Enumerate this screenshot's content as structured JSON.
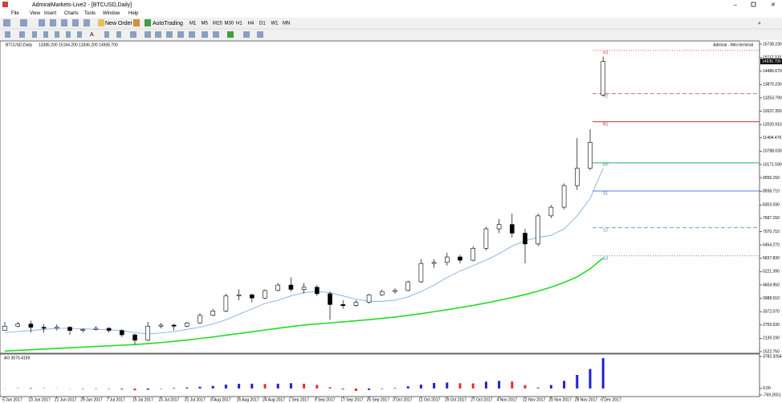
{
  "window_title": "AdmiralMarkets-Live2 - [BTCUSD,Daily]",
  "menu": [
    "File",
    "View",
    "Insert",
    "Charts",
    "Tools",
    "Window",
    "Help"
  ],
  "toolbar": {
    "new_order": "New Order",
    "auto_trading": "AutoTrading",
    "timeframes": [
      "M1",
      "M5",
      "M15",
      "M30",
      "H1",
      "H4",
      "D1",
      "W1",
      "MN"
    ]
  },
  "chart_data": [
    {
      "type": "candlestick",
      "title": "BTCUSD,Daily",
      "ohlc_text": "13385.200 15164.200 13336.200 14936.700",
      "note": "Admiral - Mini terminal",
      "categories": [
        "5 Jun 2017",
        null,
        "13 Jun 2017",
        null,
        "21 Jun 2017",
        null,
        "29 Jun 2017",
        null,
        "7 Jul 2017",
        null,
        "15 Jul 2017",
        null,
        "23 Jul 2017",
        null,
        "31 Jul 2017",
        null,
        "8 Aug 2017",
        null,
        "16 Aug 2017",
        null,
        "24 Aug 2017",
        null,
        "1 Sep 2017",
        null,
        "9 Sep 2017",
        null,
        "17 Sep 2017",
        null,
        "25 Sep 2017",
        null,
        "3 Oct 2017",
        null,
        "11 Oct 2017",
        null,
        "19 Oct 2017",
        null,
        "27 Oct 2017",
        null,
        "4 Nov 2017",
        null,
        "12 Nov 2017",
        null,
        "20 Nov 2017",
        null,
        "28 Nov 2017",
        null,
        "6 Dec 2017"
      ],
      "candles": [
        [
          2500,
          2900,
          2480,
          2700
        ],
        [
          2700,
          2900,
          2650,
          2800
        ],
        [
          2800,
          2950,
          2400,
          2650
        ],
        [
          2650,
          2800,
          2400,
          2600
        ],
        [
          2600,
          2780,
          2500,
          2650
        ],
        [
          2650,
          2700,
          2300,
          2500
        ],
        [
          2500,
          2600,
          2400,
          2550
        ],
        [
          2550,
          2700,
          2500,
          2600
        ],
        [
          2600,
          2650,
          2400,
          2500
        ],
        [
          2500,
          2550,
          2200,
          2300
        ],
        [
          2300,
          2350,
          1850,
          2050
        ],
        [
          2050,
          2900,
          2000,
          2700
        ],
        [
          2700,
          2850,
          2600,
          2750
        ],
        [
          2750,
          2800,
          2500,
          2700
        ],
        [
          2700,
          2900,
          2650,
          2850
        ],
        [
          2850,
          3300,
          2800,
          3200
        ],
        [
          3200,
          3500,
          3150,
          3400
        ],
        [
          3400,
          4200,
          3350,
          4100
        ],
        [
          4100,
          4400,
          3900,
          4150
        ],
        [
          4150,
          4200,
          3800,
          4000
        ],
        [
          4000,
          4400,
          3950,
          4350
        ],
        [
          4350,
          4700,
          4300,
          4600
        ],
        [
          4600,
          4950,
          4300,
          4400
        ],
        [
          4400,
          4700,
          4200,
          4500
        ],
        [
          4500,
          4600,
          4100,
          4200
        ],
        [
          4200,
          4300,
          3000,
          3700
        ],
        [
          3700,
          3900,
          3500,
          3650
        ],
        [
          3650,
          3900,
          3600,
          3800
        ],
        [
          3800,
          4200,
          3750,
          4150
        ],
        [
          4150,
          4400,
          4100,
          4300
        ],
        [
          4300,
          4450,
          4200,
          4350
        ],
        [
          4350,
          4800,
          4300,
          4750
        ],
        [
          4750,
          5800,
          4700,
          5600
        ],
        [
          5600,
          5800,
          5400,
          5650
        ],
        [
          5650,
          6100,
          5500,
          5900
        ],
        [
          5900,
          6000,
          5600,
          5750
        ],
        [
          5750,
          6400,
          5700,
          6300
        ],
        [
          6300,
          7300,
          6200,
          7200
        ],
        [
          7200,
          7650,
          7000,
          7400
        ],
        [
          7400,
          7900,
          6800,
          7000
        ],
        [
          7000,
          7200,
          5600,
          6500
        ],
        [
          6500,
          7900,
          6400,
          7800
        ],
        [
          7800,
          8300,
          7700,
          8200
        ],
        [
          8200,
          9300,
          8100,
          9200
        ],
        [
          9200,
          11400,
          9000,
          10000
        ],
        [
          10000,
          11800,
          9900,
          11200
        ],
        [
          13385.2,
          15164.2,
          13336.2,
          14936.7
        ]
      ],
      "up_color": "#ffffff",
      "down_color": "#000000",
      "lines": [
        {
          "color": "#7aa6e0",
          "values": [
            2400,
            2450,
            2500,
            2550,
            2600,
            2600,
            2580,
            2550,
            2540,
            2500,
            2400,
            2350,
            2380,
            2450,
            2550,
            2650,
            2800,
            3000,
            3250,
            3500,
            3750,
            3900,
            4100,
            4250,
            4300,
            4250,
            4100,
            3950,
            3850,
            3850,
            3900,
            4050,
            4300,
            4600,
            4950,
            5250,
            5500,
            5750,
            6050,
            6400,
            6650,
            6800,
            6900,
            7200,
            7800,
            8600,
            10000
          ]
        },
        {
          "color": "#22dd22",
          "values": [
            1550,
            1580,
            1610,
            1640,
            1670,
            1700,
            1730,
            1760,
            1790,
            1820,
            1850,
            1890,
            1940,
            2000,
            2060,
            2130,
            2200,
            2280,
            2360,
            2440,
            2520,
            2600,
            2680,
            2750,
            2800,
            2850,
            2900,
            2950,
            3000,
            3060,
            3120,
            3200,
            3280,
            3370,
            3460,
            3560,
            3660,
            3770,
            3890,
            4020,
            4160,
            4320,
            4500,
            4720,
            4980,
            5350,
            5850
          ]
        }
      ],
      "pivots": [
        {
          "label": "R3",
          "value": 15450,
          "color": "#e04040",
          "dash": "1,2"
        },
        {
          "label": "R2",
          "value": 13450,
          "color": "#c06060",
          "dash": "5,3"
        },
        {
          "label": "R1",
          "value": 12150,
          "color": "#b02020",
          "dash": "none"
        },
        {
          "label": "PP",
          "value": 10250,
          "color": "#20b070",
          "dash": "none"
        },
        {
          "label": "S1",
          "value": 8950,
          "color": "#3070d0",
          "dash": "none"
        },
        {
          "label": "S2",
          "value": 7250,
          "color": "#6090d0",
          "dash": "5,3"
        },
        {
          "label": "S3",
          "value": 5950,
          "color": "#4080d0",
          "dash": "1,2"
        }
      ],
      "ylim": [
        1522.75,
        15738.23
      ],
      "yticks": [
        {
          "value": 15738.23,
          "label": "15738.230"
        },
        {
          "value": 15112.31,
          "label": "15112.310"
        },
        {
          "value": 14486.67,
          "label": "14486.670"
        },
        {
          "value": 13870.23,
          "label": "13870.230"
        },
        {
          "value": 13253.79,
          "label": "13253.790"
        },
        {
          "value": 12637.35,
          "label": "12637.350"
        },
        {
          "value": 12020.91,
          "label": "12020.910"
        },
        {
          "value": 11404.47,
          "label": "11404.470"
        },
        {
          "value": 10788.03,
          "label": "10788.030"
        },
        {
          "value": 10171.59,
          "label": "10171.590"
        },
        {
          "value": 9555.15,
          "label": "9555.150"
        },
        {
          "value": 8938.71,
          "label": "8938.710"
        },
        {
          "value": 8303.59,
          "label": "8303.590"
        },
        {
          "value": 7687.15,
          "label": "7687.150"
        },
        {
          "value": 7070.71,
          "label": "7070.710"
        },
        {
          "value": 6454.27,
          "label": "6454.270"
        },
        {
          "value": 5837.83,
          "label": "5837.830"
        },
        {
          "value": 5221.39,
          "label": "5221.390"
        },
        {
          "value": 4604.95,
          "label": "4604.950"
        },
        {
          "value": 3988.51,
          "label": "3988.510"
        },
        {
          "value": 3372.07,
          "label": "3372.070"
        },
        {
          "value": 2755.63,
          "label": "2755.630"
        },
        {
          "value": 2139.19,
          "label": "2139.190"
        },
        {
          "value": 1522.75,
          "label": "1522.750"
        }
      ],
      "last_price": {
        "value": 14936.7,
        "label": "14936.700"
      }
    },
    {
      "type": "bar",
      "title": "AO 3575.4159",
      "up_color": "#2020d0",
      "down_color": "#e03030",
      "values": [
        -20,
        30,
        60,
        40,
        20,
        -30,
        -60,
        -40,
        -60,
        -120,
        -220,
        -150,
        -40,
        60,
        120,
        200,
        300,
        450,
        550,
        560,
        520,
        560,
        620,
        560,
        420,
        150,
        -120,
        -300,
        -180,
        -60,
        60,
        250,
        450,
        650,
        700,
        620,
        600,
        800,
        900,
        820,
        400,
        120,
        400,
        900,
        1600,
        2300,
        3575.4159
      ],
      "ylim": [
        -769.2651,
        3782.3264
      ],
      "yticks": [
        {
          "value": 3782.3264,
          "label": "3782.3264"
        },
        {
          "value": 0,
          "label": "0.00"
        },
        {
          "value": -769.2651,
          "label": "-769.2651"
        }
      ]
    }
  ]
}
